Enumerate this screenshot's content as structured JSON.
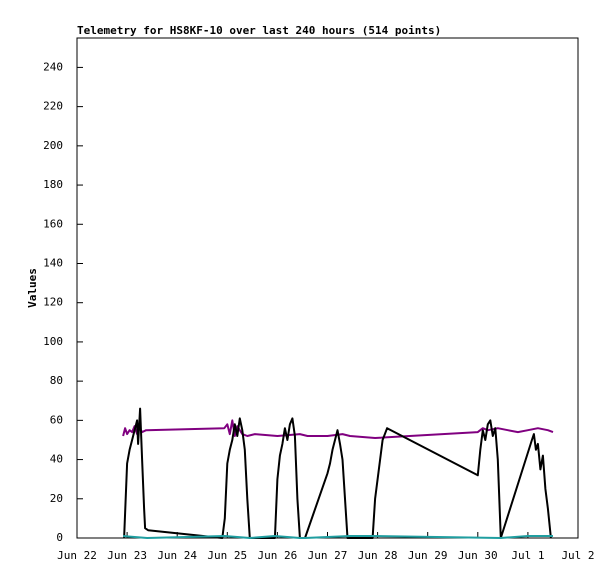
{
  "chart_data": {
    "type": "line",
    "title": "Telemetry for HS8KF-10 over last 240 hours (514 points)",
    "y_label": "Values",
    "xlim": [
      0,
      10
    ],
    "xticks": [
      {
        "value": 0,
        "label": "Jun 22"
      },
      {
        "value": 1,
        "label": "Jun 23"
      },
      {
        "value": 2,
        "label": "Jun 24"
      },
      {
        "value": 3,
        "label": "Jun 25"
      },
      {
        "value": 4,
        "label": "Jun 26"
      },
      {
        "value": 5,
        "label": "Jun 27"
      },
      {
        "value": 6,
        "label": "Jun 28"
      },
      {
        "value": 7,
        "label": "Jun 29"
      },
      {
        "value": 8,
        "label": "Jun 30"
      },
      {
        "value": 9,
        "label": "Jul 1"
      },
      {
        "value": 10,
        "label": "Jul 2"
      }
    ],
    "ylim": [
      0,
      255
    ],
    "yticks": [
      0,
      20,
      40,
      60,
      80,
      100,
      120,
      140,
      160,
      180,
      200,
      220,
      240
    ],
    "series": [
      {
        "color": "#800080",
        "x": [
          0.92,
          0.96,
          1.0,
          1.05,
          1.1,
          1.15,
          1.2,
          1.25,
          1.3,
          1.38,
          2.94,
          3.0,
          3.05,
          3.1,
          3.15,
          3.2,
          3.3,
          3.4,
          3.55,
          4.0,
          4.45,
          4.6,
          5.0,
          5.3,
          5.45,
          5.95,
          8.0,
          8.1,
          8.2,
          8.4,
          8.6,
          8.8,
          9.0,
          9.2,
          9.4,
          9.5
        ],
        "values": [
          52,
          56,
          53,
          55,
          54,
          57,
          53,
          56,
          54,
          55,
          56,
          58,
          53,
          60,
          52,
          57,
          53,
          52,
          53,
          52,
          53,
          52,
          52,
          53,
          52,
          51,
          54,
          56,
          55,
          56,
          55,
          54,
          55,
          56,
          55,
          54
        ]
      },
      {
        "color": "#000000",
        "x": [
          0.94,
          1.0,
          1.05,
          1.1,
          1.15,
          1.2,
          1.22,
          1.26,
          1.3,
          1.34,
          1.36,
          1.42,
          2.9,
          2.95,
          3.0,
          3.05,
          3.1,
          3.15,
          3.2,
          3.25,
          3.3,
          3.35,
          3.4,
          3.45,
          3.95,
          4.0,
          4.05,
          4.1,
          4.15,
          4.2,
          4.25,
          4.3,
          4.35,
          4.4,
          4.45,
          4.55,
          5.0,
          5.05,
          5.1,
          5.15,
          5.2,
          5.25,
          5.3,
          5.4,
          5.9,
          5.95,
          6.05,
          6.1,
          6.19,
          8.0,
          8.05,
          8.1,
          8.15,
          8.2,
          8.25,
          8.3,
          8.35,
          8.4,
          8.46,
          9.08,
          9.12,
          9.16,
          9.2,
          9.25,
          9.3,
          9.35,
          9.4,
          9.46
        ],
        "values": [
          0,
          38,
          45,
          50,
          55,
          60,
          48,
          66,
          40,
          15,
          5,
          4,
          0,
          10,
          38,
          45,
          50,
          58,
          52,
          61,
          55,
          45,
          20,
          0,
          0,
          30,
          42,
          48,
          56,
          50,
          58,
          61,
          52,
          20,
          0,
          0,
          33,
          38,
          45,
          50,
          55,
          48,
          40,
          0,
          0,
          20,
          40,
          50,
          56,
          32,
          45,
          55,
          50,
          58,
          60,
          52,
          56,
          40,
          0,
          50,
          53,
          45,
          48,
          35,
          42,
          25,
          15,
          0
        ]
      },
      {
        "color": "#1f9ea0",
        "x": [
          0.92,
          1.4,
          2.95,
          3.45,
          3.95,
          4.45,
          4.55,
          5.45,
          5.9,
          8.46,
          9.0,
          9.5
        ],
        "values": [
          1,
          0,
          1,
          0,
          1,
          0,
          0,
          1,
          1,
          0,
          1,
          1
        ]
      }
    ]
  }
}
